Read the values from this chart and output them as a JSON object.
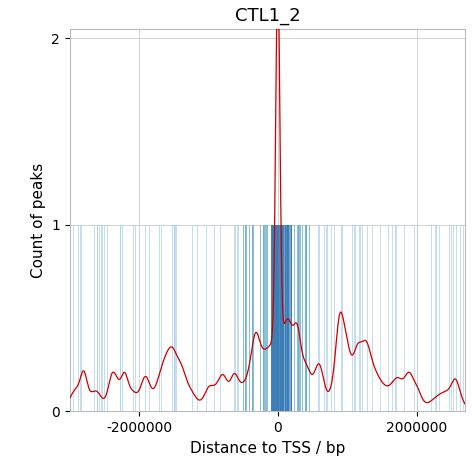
{
  "title": "CTL1_2",
  "xlabel": "Distance to TSS / bp",
  "ylabel": "Count of peaks",
  "xlim": [
    -3000000,
    2700000
  ],
  "ylim": [
    0,
    2.05
  ],
  "yticks": [
    0,
    1,
    2
  ],
  "xticks": [
    -2000000,
    0,
    2000000
  ],
  "background_color": "#ffffff",
  "grid_color": "#cccccc",
  "bar_color_sparse": "#aacfe8",
  "bar_color_dense": "#3a7db5",
  "line_color": "#cc0000",
  "title_fontsize": 13,
  "axis_label_fontsize": 11,
  "tick_fontsize": 10,
  "seed": 42
}
